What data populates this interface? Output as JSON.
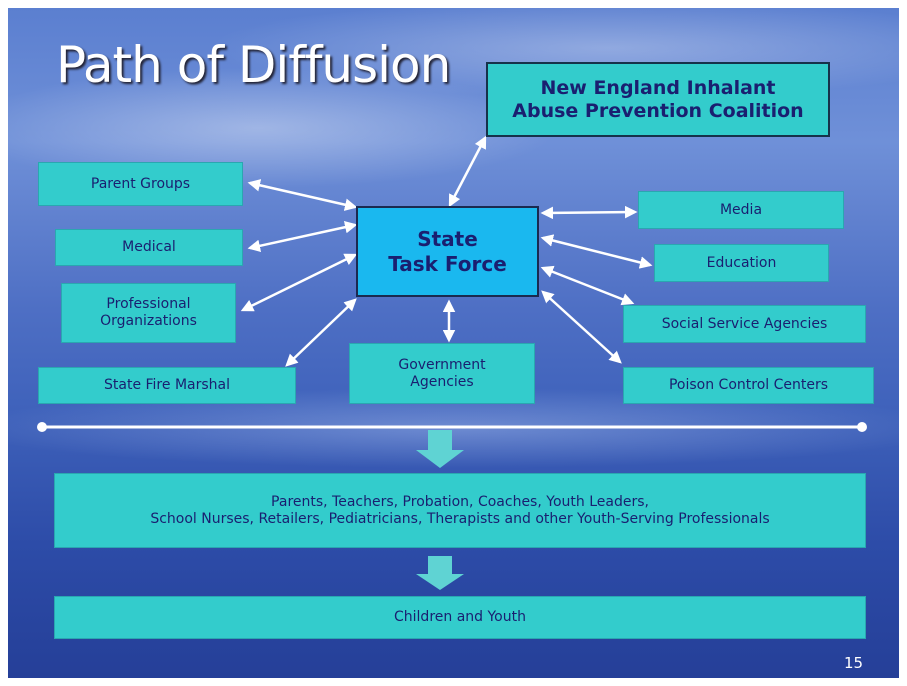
{
  "title": "Path of Diffusion",
  "coalition": {
    "lines": [
      "New England Inhalant",
      "Abuse Prevention Coalition"
    ]
  },
  "center": {
    "lines": [
      "State",
      "Task Force"
    ]
  },
  "nodes": [
    {
      "lines": [
        "Parent Groups"
      ]
    },
    {
      "lines": [
        "Medical"
      ]
    },
    {
      "lines": [
        "Professional",
        "Organizations"
      ]
    },
    {
      "lines": [
        "State Fire Marshal"
      ]
    },
    {
      "lines": [
        "Government",
        "Agencies"
      ]
    },
    {
      "lines": [
        "Media"
      ]
    },
    {
      "lines": [
        "Education"
      ]
    },
    {
      "lines": [
        "Social Service Agencies"
      ]
    },
    {
      "lines": [
        "Poison Control Centers"
      ]
    }
  ],
  "audience": {
    "lines": [
      "Parents, Teachers, Probation, Coaches, Youth Leaders,",
      "School Nurses, Retailers, Pediatricians, Therapists and other Youth-Serving Professionals"
    ]
  },
  "children": {
    "lines": [
      "Children and Youth"
    ]
  },
  "page_number": "15"
}
